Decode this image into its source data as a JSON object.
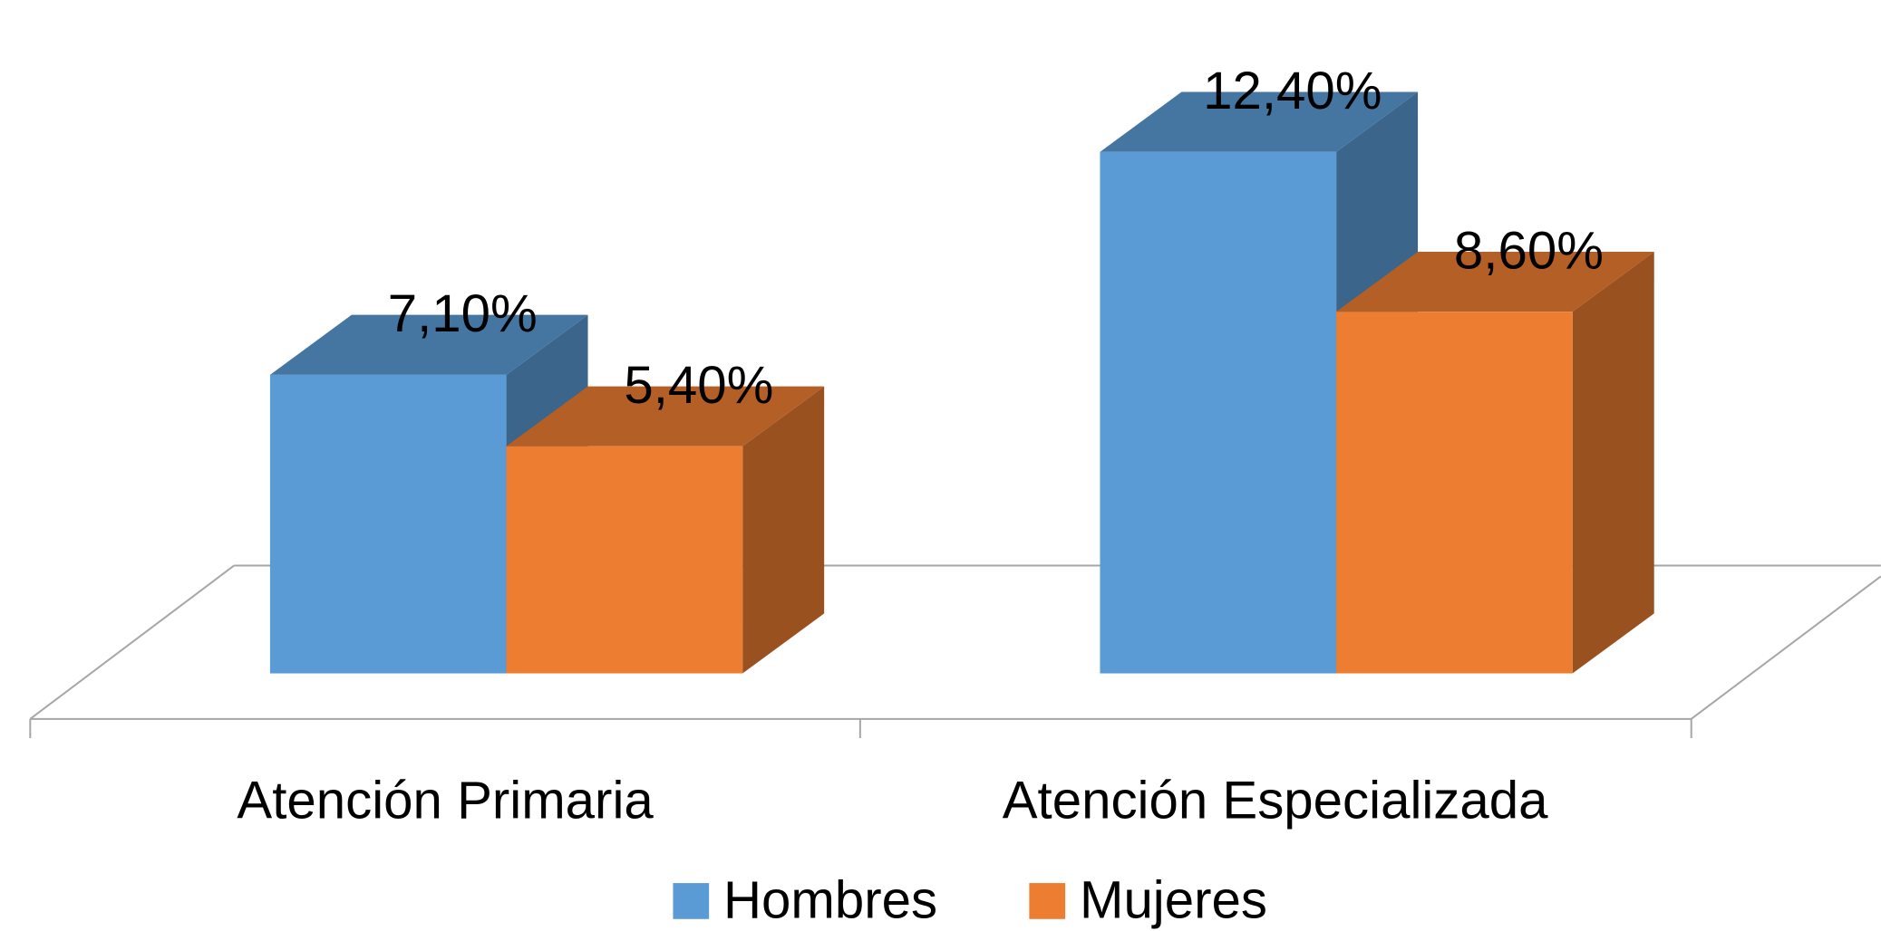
{
  "chart_data": {
    "type": "bar3d",
    "categories": [
      "Atención Primaria",
      "Atención Especializada"
    ],
    "series": [
      {
        "name": "Hombres",
        "color": "#5b9bd5",
        "values": [
          7.1,
          12.4
        ],
        "value_labels": [
          "7,10%",
          "12,40%"
        ]
      },
      {
        "name": "Mujeres",
        "color": "#ed7d31",
        "values": [
          5.4,
          8.6
        ],
        "value_labels": [
          "5,40%",
          "8,60%"
        ]
      }
    ],
    "legend": "bottom"
  }
}
